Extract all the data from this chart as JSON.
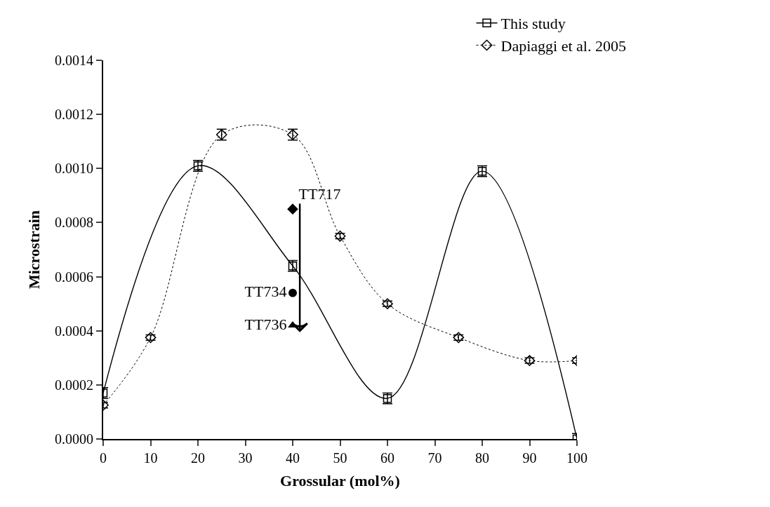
{
  "chart_data": {
    "type": "line",
    "xlabel": "Grossular (mol%)",
    "ylabel": "Microstrain",
    "xlim": [
      0,
      100
    ],
    "xticks": [
      0,
      10,
      20,
      30,
      40,
      50,
      60,
      70,
      80,
      90,
      100
    ],
    "ylim": [
      0,
      0.0014
    ],
    "yticks": [
      {
        "value": 0,
        "label": "0.0000"
      },
      {
        "value": 0.0002,
        "label": "0.0002"
      },
      {
        "value": 0.0004,
        "label": "0.0004"
      },
      {
        "value": 0.0006,
        "label": "0.0006"
      },
      {
        "value": 0.0008,
        "label": "0.0008"
      },
      {
        "value": 0.001,
        "label": "0.0010"
      },
      {
        "value": 0.0012,
        "label": "0.0012"
      },
      {
        "value": 0.0014,
        "label": "0.0014"
      }
    ],
    "legend": "top right",
    "series": [
      {
        "name": "This study",
        "color": "#000000",
        "marker": "square",
        "line_style": "solid",
        "x": [
          0,
          20,
          40,
          60,
          80,
          100
        ],
        "values": [
          0.00017,
          0.00101,
          0.00064,
          0.00015,
          0.00099,
          0.0
        ],
        "errors": [
          2e-05,
          2e-05,
          2e-05,
          2e-05,
          2e-05,
          2e-05
        ]
      },
      {
        "name": "Dapiaggi et al. 2005",
        "color": "#000000",
        "marker": "diamond",
        "line_style": "dotted",
        "x": [
          0,
          10,
          25,
          40,
          50,
          60,
          75,
          90,
          100
        ],
        "values": [
          0.000125,
          0.000375,
          0.001125,
          0.001125,
          0.00075,
          0.0005,
          0.000375,
          0.00029,
          0.00029
        ],
        "errors": [
          1e-05,
          1e-05,
          2e-05,
          2e-05,
          1e-05,
          1e-05,
          1e-05,
          1e-05,
          1e-05
        ]
      },
      {
        "name": "TT717",
        "type": "scatter",
        "color": "#000000",
        "marker": "diamond",
        "x": [
          40
        ],
        "values": [
          0.00085
        ]
      },
      {
        "name": "TT734",
        "type": "scatter",
        "color": "#000000",
        "marker": "circle",
        "x": [
          40
        ],
        "values": [
          0.00054
        ]
      },
      {
        "name": "TT736",
        "type": "scatter",
        "color": "#000000",
        "marker": "triangle",
        "x": [
          40
        ],
        "values": [
          0.00042
        ]
      },
      {
        "color": "#000000",
        "marker": "none",
        "line_style": "solid",
        "x": [
          41.5,
          41.5
        ],
        "values": [
          0.00087,
          0.0004
        ]
      }
    ]
  }
}
